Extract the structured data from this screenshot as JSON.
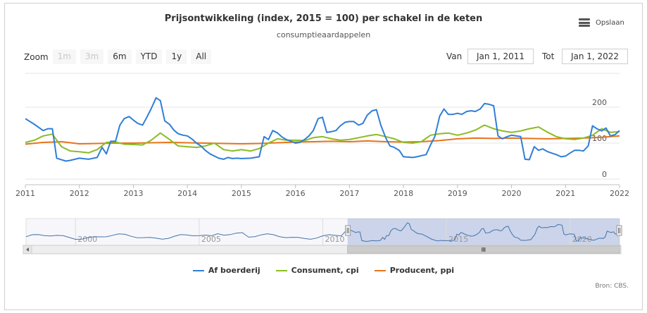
{
  "title": "Prijsontwikkeling (index, 2015 = 100) per schakel in de keten",
  "subtitle": "consumptieaardappelen",
  "menu": {
    "label": "Opslaan"
  },
  "zoom": {
    "label": "Zoom",
    "buttons": [
      {
        "label": "1m",
        "enabled": false
      },
      {
        "label": "3m",
        "enabled": false
      },
      {
        "label": "6m",
        "enabled": true
      },
      {
        "label": "YTD",
        "enabled": true
      },
      {
        "label": "1y",
        "enabled": true
      },
      {
        "label": "All",
        "enabled": true
      }
    ]
  },
  "range": {
    "from_label": "Van",
    "from_value": "Jan 1, 2011",
    "to_label": "Tot",
    "to_value": "Jan 1, 2022"
  },
  "credits": "Bron: CBS.",
  "colors": {
    "af_boerderij": "#2f7ed8",
    "consument": "#8bbc21",
    "producent": "#e8731c"
  },
  "navigator": {
    "labels": [
      "2000",
      "2005",
      "2010",
      "2015",
      "2020"
    ],
    "range": [
      1998,
      2022
    ],
    "selected": [
      2011,
      2022
    ]
  },
  "chart_data": {
    "type": "line",
    "title": "Prijsontwikkeling (index, 2015 = 100) per schakel in de keten",
    "subtitle": "consumptieaardappelen",
    "xlim": [
      2011,
      2022
    ],
    "ylim": [
      0,
      250
    ],
    "x_ticks": [
      "2011",
      "2012",
      "2013",
      "2014",
      "2015",
      "2016",
      "2017",
      "2018",
      "2019",
      "2020",
      "2021",
      "2022"
    ],
    "y_ticks": [
      "0",
      "100",
      "200"
    ],
    "legend_position": "bottom",
    "grid": true,
    "series": [
      {
        "name": "Af boerderij",
        "points": [
          [
            2011.0,
            168
          ],
          [
            2011.17,
            152
          ],
          [
            2011.33,
            135
          ],
          [
            2011.42,
            140
          ],
          [
            2011.5,
            140
          ],
          [
            2011.58,
            58
          ],
          [
            2011.75,
            50
          ],
          [
            2011.83,
            52
          ],
          [
            2012.0,
            58
          ],
          [
            2012.17,
            55
          ],
          [
            2012.33,
            60
          ],
          [
            2012.42,
            88
          ],
          [
            2012.5,
            70
          ],
          [
            2012.58,
            105
          ],
          [
            2012.67,
            105
          ],
          [
            2012.75,
            150
          ],
          [
            2012.83,
            168
          ],
          [
            2012.92,
            174
          ],
          [
            2013.0,
            164
          ],
          [
            2013.08,
            155
          ],
          [
            2013.17,
            150
          ],
          [
            2013.25,
            172
          ],
          [
            2013.33,
            196
          ],
          [
            2013.42,
            226
          ],
          [
            2013.5,
            218
          ],
          [
            2013.58,
            162
          ],
          [
            2013.67,
            152
          ],
          [
            2013.75,
            136
          ],
          [
            2013.83,
            126
          ],
          [
            2013.92,
            122
          ],
          [
            2014.0,
            120
          ],
          [
            2014.08,
            112
          ],
          [
            2014.17,
            100
          ],
          [
            2014.25,
            92
          ],
          [
            2014.33,
            80
          ],
          [
            2014.42,
            70
          ],
          [
            2014.5,
            64
          ],
          [
            2014.58,
            58
          ],
          [
            2014.67,
            55
          ],
          [
            2014.75,
            60
          ],
          [
            2014.83,
            57
          ],
          [
            2014.92,
            58
          ],
          [
            2015.0,
            57
          ],
          [
            2015.17,
            58
          ],
          [
            2015.33,
            62
          ],
          [
            2015.42,
            118
          ],
          [
            2015.5,
            110
          ],
          [
            2015.58,
            135
          ],
          [
            2015.67,
            128
          ],
          [
            2015.75,
            117
          ],
          [
            2015.83,
            110
          ],
          [
            2015.92,
            105
          ],
          [
            2016.0,
            100
          ],
          [
            2016.08,
            102
          ],
          [
            2016.17,
            110
          ],
          [
            2016.25,
            120
          ],
          [
            2016.33,
            135
          ],
          [
            2016.42,
            168
          ],
          [
            2016.5,
            172
          ],
          [
            2016.58,
            130
          ],
          [
            2016.67,
            132
          ],
          [
            2016.75,
            135
          ],
          [
            2016.83,
            148
          ],
          [
            2016.92,
            158
          ],
          [
            2017.0,
            160
          ],
          [
            2017.08,
            160
          ],
          [
            2017.17,
            150
          ],
          [
            2017.25,
            155
          ],
          [
            2017.33,
            178
          ],
          [
            2017.42,
            190
          ],
          [
            2017.5,
            193
          ],
          [
            2017.58,
            150
          ],
          [
            2017.67,
            115
          ],
          [
            2017.75,
            92
          ],
          [
            2017.83,
            88
          ],
          [
            2017.92,
            80
          ],
          [
            2018.0,
            62
          ],
          [
            2018.17,
            60
          ],
          [
            2018.25,
            62
          ],
          [
            2018.33,
            65
          ],
          [
            2018.42,
            68
          ],
          [
            2018.5,
            95
          ],
          [
            2018.58,
            118
          ],
          [
            2018.67,
            175
          ],
          [
            2018.75,
            195
          ],
          [
            2018.83,
            180
          ],
          [
            2018.92,
            180
          ],
          [
            2019.0,
            183
          ],
          [
            2019.08,
            180
          ],
          [
            2019.17,
            188
          ],
          [
            2019.25,
            190
          ],
          [
            2019.33,
            188
          ],
          [
            2019.42,
            195
          ],
          [
            2019.5,
            210
          ],
          [
            2019.58,
            208
          ],
          [
            2019.67,
            204
          ],
          [
            2019.75,
            120
          ],
          [
            2019.83,
            112
          ],
          [
            2019.92,
            118
          ],
          [
            2020.0,
            122
          ],
          [
            2020.17,
            118
          ],
          [
            2020.25,
            55
          ],
          [
            2020.33,
            54
          ],
          [
            2020.42,
            90
          ],
          [
            2020.5,
            80
          ],
          [
            2020.58,
            84
          ],
          [
            2020.67,
            76
          ],
          [
            2020.75,
            72
          ],
          [
            2020.83,
            68
          ],
          [
            2020.92,
            62
          ],
          [
            2021.0,
            64
          ],
          [
            2021.08,
            72
          ],
          [
            2021.17,
            80
          ],
          [
            2021.25,
            80
          ],
          [
            2021.33,
            78
          ],
          [
            2021.42,
            92
          ],
          [
            2021.5,
            148
          ],
          [
            2021.58,
            140
          ],
          [
            2021.67,
            134
          ],
          [
            2021.75,
            142
          ],
          [
            2021.83,
            120
          ],
          [
            2021.92,
            124
          ],
          [
            2022.0,
            135
          ]
        ]
      },
      {
        "name": "Consument, cpi",
        "points": [
          [
            2011.0,
            102
          ],
          [
            2011.17,
            108
          ],
          [
            2011.33,
            120
          ],
          [
            2011.5,
            125
          ],
          [
            2011.67,
            90
          ],
          [
            2011.83,
            78
          ],
          [
            2012.0,
            76
          ],
          [
            2012.17,
            73
          ],
          [
            2012.33,
            82
          ],
          [
            2012.5,
            102
          ],
          [
            2012.67,
            103
          ],
          [
            2012.83,
            97
          ],
          [
            2013.0,
            96
          ],
          [
            2013.17,
            95
          ],
          [
            2013.33,
            108
          ],
          [
            2013.5,
            128
          ],
          [
            2013.67,
            110
          ],
          [
            2013.83,
            92
          ],
          [
            2014.0,
            90
          ],
          [
            2014.17,
            88
          ],
          [
            2014.33,
            92
          ],
          [
            2014.5,
            100
          ],
          [
            2014.67,
            82
          ],
          [
            2014.83,
            78
          ],
          [
            2015.0,
            82
          ],
          [
            2015.17,
            78
          ],
          [
            2015.33,
            85
          ],
          [
            2015.5,
            100
          ],
          [
            2015.67,
            112
          ],
          [
            2015.83,
            108
          ],
          [
            2016.0,
            108
          ],
          [
            2016.17,
            107
          ],
          [
            2016.33,
            115
          ],
          [
            2016.5,
            118
          ],
          [
            2016.67,
            112
          ],
          [
            2016.83,
            108
          ],
          [
            2017.0,
            110
          ],
          [
            2017.17,
            115
          ],
          [
            2017.33,
            120
          ],
          [
            2017.5,
            124
          ],
          [
            2017.67,
            118
          ],
          [
            2017.83,
            112
          ],
          [
            2018.0,
            102
          ],
          [
            2018.17,
            100
          ],
          [
            2018.33,
            104
          ],
          [
            2018.5,
            122
          ],
          [
            2018.67,
            126
          ],
          [
            2018.83,
            128
          ],
          [
            2019.0,
            122
          ],
          [
            2019.17,
            128
          ],
          [
            2019.33,
            136
          ],
          [
            2019.5,
            150
          ],
          [
            2019.67,
            140
          ],
          [
            2019.83,
            134
          ],
          [
            2020.0,
            130
          ],
          [
            2020.17,
            134
          ],
          [
            2020.33,
            140
          ],
          [
            2020.5,
            145
          ],
          [
            2020.67,
            130
          ],
          [
            2020.83,
            118
          ],
          [
            2021.0,
            112
          ],
          [
            2021.17,
            110
          ],
          [
            2021.33,
            114
          ],
          [
            2021.5,
            122
          ],
          [
            2021.67,
            140
          ],
          [
            2021.83,
            130
          ],
          [
            2022.0,
            132
          ]
        ]
      },
      {
        "name": "Producent, ppi",
        "points": [
          [
            2011.0,
            97
          ],
          [
            2011.33,
            102
          ],
          [
            2011.67,
            104
          ],
          [
            2012.0,
            98
          ],
          [
            2012.33,
            99
          ],
          [
            2012.67,
            100
          ],
          [
            2013.0,
            100
          ],
          [
            2013.33,
            101
          ],
          [
            2013.67,
            102
          ],
          [
            2014.0,
            101
          ],
          [
            2014.33,
            100
          ],
          [
            2014.67,
            99
          ],
          [
            2015.0,
            98
          ],
          [
            2015.33,
            99
          ],
          [
            2015.67,
            101
          ],
          [
            2016.0,
            103
          ],
          [
            2016.33,
            104
          ],
          [
            2016.67,
            105
          ],
          [
            2017.0,
            104
          ],
          [
            2017.33,
            106
          ],
          [
            2017.67,
            104
          ],
          [
            2018.0,
            103
          ],
          [
            2018.33,
            104
          ],
          [
            2018.67,
            107
          ],
          [
            2019.0,
            112
          ],
          [
            2019.33,
            114
          ],
          [
            2019.67,
            113
          ],
          [
            2020.0,
            114
          ],
          [
            2020.33,
            113
          ],
          [
            2020.67,
            112
          ],
          [
            2021.0,
            113
          ],
          [
            2021.33,
            114
          ],
          [
            2021.67,
            116
          ],
          [
            2022.0,
            120
          ]
        ]
      }
    ]
  }
}
